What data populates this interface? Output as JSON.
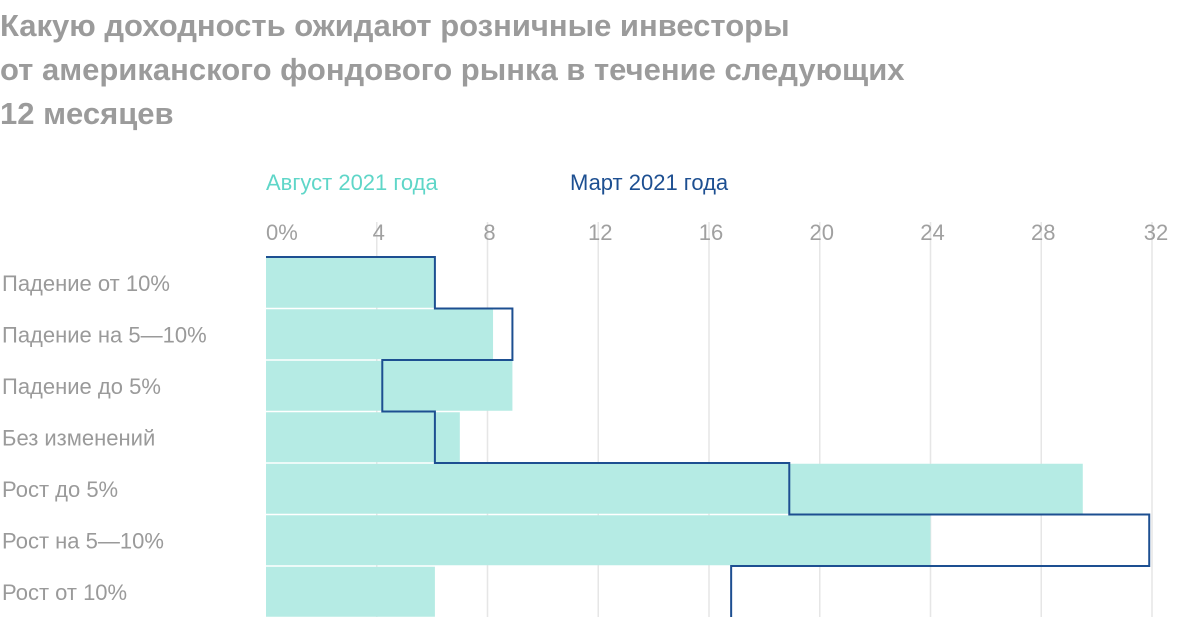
{
  "title_lines": [
    "Какую доходность ожидают розничные инвесторы",
    "от американского фондового рынка в течение следующих",
    "12 месяцев"
  ],
  "colors": {
    "august": "#b5ebe4",
    "august_text": "#5fd6c8",
    "march": "#1d4f91",
    "grid": "#e6e6e6",
    "tick": "#a0a0a0",
    "label": "#9a9a9a"
  },
  "chart_data": {
    "type": "bar",
    "categories": [
      "Падение от 10%",
      "Падение на 5—10%",
      "Падение до 5%",
      "Без изменений",
      "Рост до 5%",
      "Рост на 5—10%",
      "Рост от 10%"
    ],
    "series": [
      {
        "name": "Август 2021 года",
        "style": "filled-bar",
        "values": [
          6.1,
          8.2,
          8.9,
          7.0,
          29.5,
          24.0,
          6.1
        ]
      },
      {
        "name": "Март 2021 года",
        "style": "step-outline",
        "values": [
          6.1,
          8.9,
          4.2,
          6.1,
          18.9,
          31.9,
          16.8
        ]
      }
    ],
    "xticks": [
      "0%",
      "4",
      "8",
      "12",
      "16",
      "20",
      "24",
      "28",
      "32"
    ],
    "xlim": [
      0,
      32
    ],
    "grid": true,
    "legend": "top"
  }
}
